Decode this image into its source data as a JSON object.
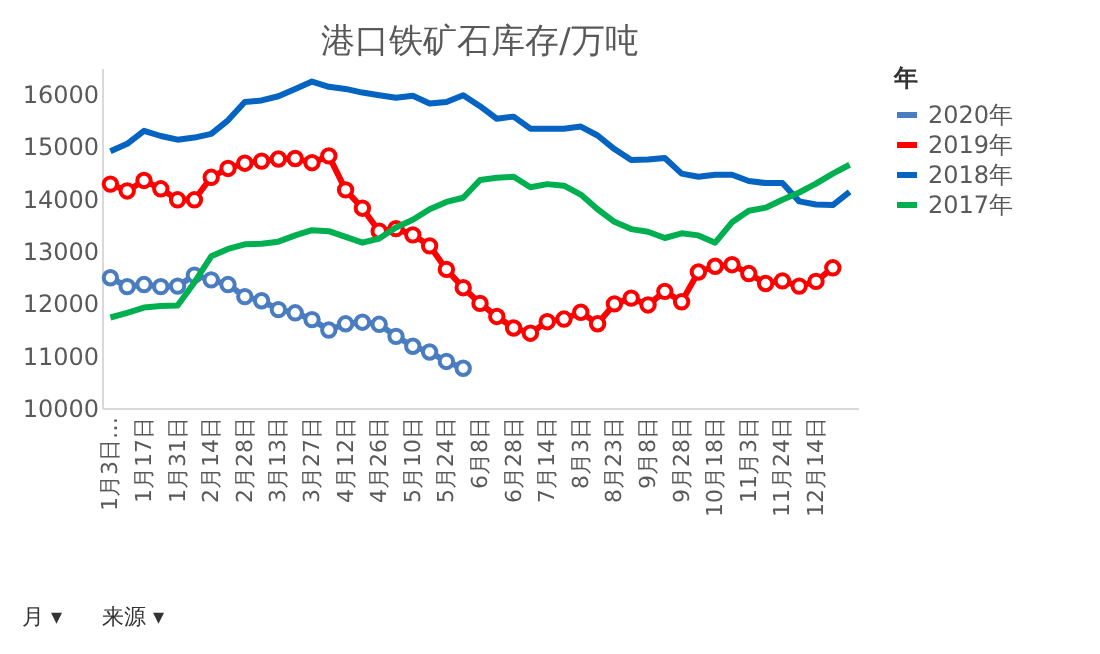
{
  "chart_data": {
    "type": "line",
    "title": "港口铁矿石库存/万吨",
    "legend_title": "年",
    "categories": [
      "1月3日…",
      null,
      "1月17日",
      null,
      "1月31日",
      null,
      "2月14日",
      null,
      "2月28日",
      null,
      "3月13日",
      null,
      "3月27日",
      null,
      "4月12日",
      null,
      "4月26日",
      null,
      "5月10日",
      null,
      "5月24日",
      null,
      "6月8日",
      null,
      "6月28日",
      null,
      "7月14日",
      null,
      "8月3日",
      null,
      "8月23日",
      null,
      "9月8日",
      null,
      "9月28日",
      null,
      "10月18日",
      null,
      "11月3日",
      null,
      "11月24日",
      null,
      "12月14日",
      null,
      null
    ],
    "series": [
      {
        "name": "2020年",
        "color": "#4a7cc0",
        "marker": "circle",
        "values": [
          12490,
          12320,
          12360,
          12320,
          12330,
          12540,
          12450,
          12360,
          12130,
          12050,
          11880,
          11820,
          11690,
          11490,
          11610,
          11640,
          11600,
          11370,
          11180,
          11070,
          10890,
          10760,
          null,
          null,
          null,
          null,
          null,
          null,
          null,
          null,
          null,
          null,
          null,
          null,
          null,
          null,
          null,
          null,
          null,
          null,
          null,
          null,
          null,
          null,
          null
        ]
      },
      {
        "name": "2019年",
        "color": "#ff0000",
        "marker": "circle",
        "values": [
          14280,
          14150,
          14350,
          14190,
          13980,
          13980,
          14410,
          14580,
          14680,
          14720,
          14760,
          14770,
          14690,
          14820,
          14170,
          13820,
          13380,
          13430,
          13310,
          13100,
          12650,
          12300,
          12000,
          11750,
          11530,
          11430,
          11650,
          11700,
          11830,
          11610,
          11990,
          12100,
          11970,
          12230,
          12030,
          12600,
          12710,
          12740,
          12570,
          12380,
          12430,
          12330,
          12420,
          12680,
          null
        ]
      },
      {
        "name": "2018年",
        "color": "#0563c1",
        "marker": "none",
        "values": [
          14910,
          15050,
          15300,
          15200,
          15130,
          15170,
          15240,
          15500,
          15850,
          15880,
          15960,
          16100,
          16240,
          16140,
          16100,
          16030,
          15980,
          15930,
          15970,
          15820,
          15850,
          15980,
          15770,
          15530,
          15570,
          15340,
          15340,
          15340,
          15380,
          15210,
          14950,
          14740,
          14750,
          14780,
          14480,
          14420,
          14460,
          14460,
          14340,
          14300,
          14300,
          13950,
          13890,
          13880,
          14130
        ]
      },
      {
        "name": "2017年",
        "color": "#00b050",
        "marker": "none",
        "values": [
          11730,
          11820,
          11920,
          11950,
          11960,
          12400,
          12900,
          13040,
          13130,
          13140,
          13180,
          13300,
          13400,
          13380,
          13270,
          13160,
          13240,
          13450,
          13600,
          13800,
          13940,
          14020,
          14360,
          14400,
          14420,
          14220,
          14280,
          14250,
          14080,
          13800,
          13560,
          13420,
          13370,
          13250,
          13340,
          13300,
          13160,
          13550,
          13770,
          13830,
          13980,
          14120,
          14290,
          14480,
          14650
        ]
      }
    ],
    "ylim": [
      10000,
      16500
    ],
    "yticks": [
      10000,
      11000,
      12000,
      13000,
      14000,
      15000,
      16000
    ],
    "grid": false,
    "legend": "right",
    "line_style": "solid",
    "annotations": [
      "月 ▾",
      "来源 ▾"
    ]
  }
}
